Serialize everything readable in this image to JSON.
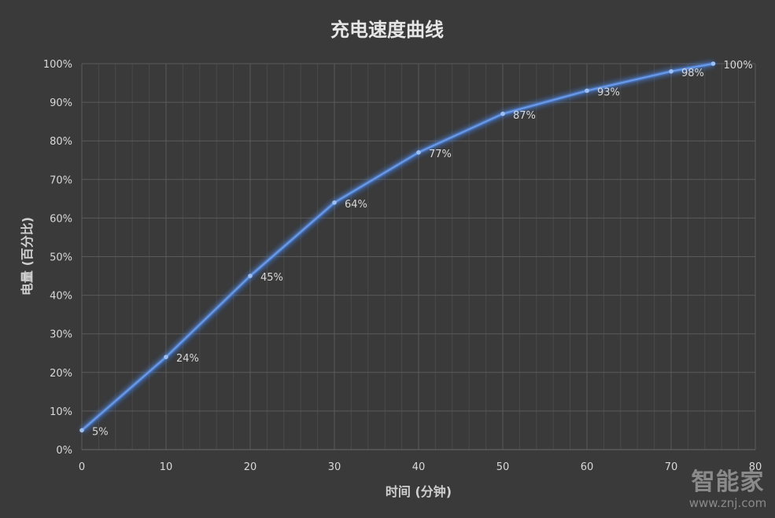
{
  "chart_data": {
    "type": "scatter",
    "title": "充电速度曲线",
    "xlabel": "时间 (分钟)",
    "ylabel": "电量 (百分比)",
    "x": [
      0,
      10,
      20,
      30,
      40,
      50,
      60,
      70,
      75
    ],
    "y": [
      5,
      24,
      45,
      64,
      77,
      87,
      93,
      98,
      100
    ],
    "point_labels": [
      "5%",
      "24%",
      "45%",
      "64%",
      "77%",
      "87%",
      "93%",
      "98%",
      "100%"
    ],
    "xlim": [
      0,
      80
    ],
    "ylim": [
      0,
      100
    ],
    "x_ticks": [
      "0",
      "10",
      "20",
      "30",
      "40",
      "50",
      "60",
      "70",
      "80"
    ],
    "y_ticks": [
      "0%",
      "10%",
      "20%",
      "30%",
      "40%",
      "50%",
      "60%",
      "70%",
      "80%",
      "90%",
      "100%"
    ],
    "grid": true,
    "line_color": "#6a9ae6",
    "glow_color": "#4a7fd6"
  },
  "watermark": {
    "main": "智能家",
    "sub": "www.znj.com"
  }
}
